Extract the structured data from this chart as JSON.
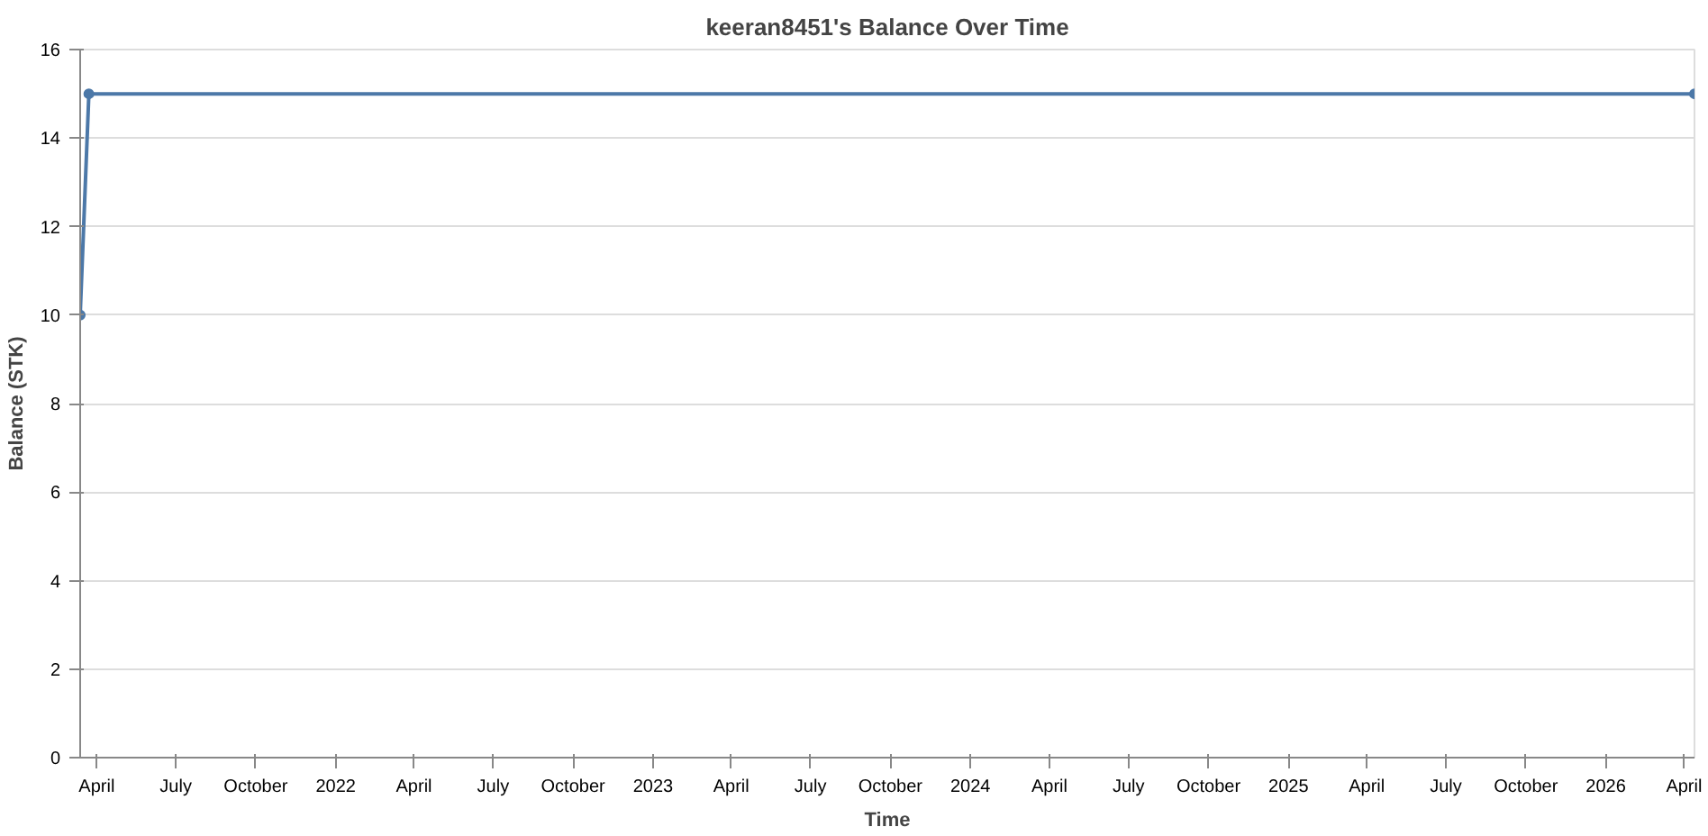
{
  "chart_data": {
    "type": "line",
    "title": "keeran8451's Balance Over Time",
    "xlabel": "Time",
    "ylabel": "Balance (STK)",
    "x": [
      "2021-03-13",
      "2021-03-23",
      "2026-04-13"
    ],
    "series": [
      {
        "color": "#4c78a8",
        "values": [
          10,
          15,
          15
        ]
      }
    ],
    "xlim": [
      "2021-03-13",
      "2026-04-13"
    ],
    "xticks": [
      {
        "value": "2021-04-01",
        "label": "April"
      },
      {
        "value": "2021-07-01",
        "label": "July"
      },
      {
        "value": "2021-10-01",
        "label": "October"
      },
      {
        "value": "2022-01-01",
        "label": "2022"
      },
      {
        "value": "2022-04-01",
        "label": "April"
      },
      {
        "value": "2022-07-01",
        "label": "July"
      },
      {
        "value": "2022-10-01",
        "label": "October"
      },
      {
        "value": "2023-01-01",
        "label": "2023"
      },
      {
        "value": "2023-04-01",
        "label": "April"
      },
      {
        "value": "2023-07-01",
        "label": "July"
      },
      {
        "value": "2023-10-01",
        "label": "October"
      },
      {
        "value": "2024-01-01",
        "label": "2024"
      },
      {
        "value": "2024-04-01",
        "label": "April"
      },
      {
        "value": "2024-07-01",
        "label": "July"
      },
      {
        "value": "2024-10-01",
        "label": "October"
      },
      {
        "value": "2025-01-01",
        "label": "2025"
      },
      {
        "value": "2025-04-01",
        "label": "April"
      },
      {
        "value": "2025-07-01",
        "label": "July"
      },
      {
        "value": "2025-10-01",
        "label": "October"
      },
      {
        "value": "2026-01-01",
        "label": "2026"
      },
      {
        "value": "2026-04-01",
        "label": "April"
      }
    ],
    "ylim": [
      0,
      16
    ],
    "yticks": [
      0,
      2,
      4,
      6,
      8,
      10,
      12,
      14,
      16
    ],
    "grid": "y",
    "marker": "circle",
    "line_style": "solid"
  }
}
